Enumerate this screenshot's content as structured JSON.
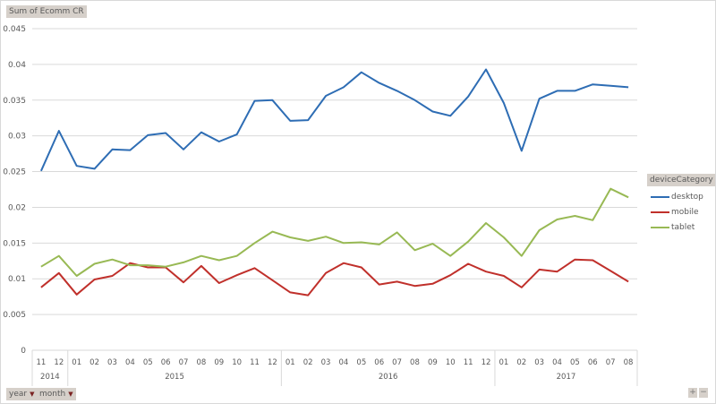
{
  "value_field": "Sum of Ecomm CR",
  "legend_field": "deviceCategory",
  "axis_fields": [
    "year",
    "month"
  ],
  "zoom_buttons": [
    "+",
    "−"
  ],
  "chart_data": {
    "type": "line",
    "title": "",
    "xlabel": "",
    "ylabel": "",
    "ylim": [
      0,
      0.045
    ],
    "yticks": [
      "0",
      "0.005",
      "0.01",
      "0.015",
      "0.02",
      "0.025",
      "0.03",
      "0.035",
      "0.04",
      "0.045"
    ],
    "grid": true,
    "legend_position": "right",
    "categories": [
      "11",
      "12",
      "01",
      "02",
      "03",
      "04",
      "05",
      "06",
      "07",
      "08",
      "09",
      "10",
      "11",
      "12",
      "01",
      "02",
      "03",
      "04",
      "05",
      "06",
      "07",
      "08",
      "09",
      "10",
      "11",
      "12",
      "01",
      "02",
      "03",
      "04",
      "05",
      "06",
      "07",
      "08"
    ],
    "year_groups": [
      {
        "label": "2014",
        "count": 2
      },
      {
        "label": "2015",
        "count": 12
      },
      {
        "label": "2016",
        "count": 12
      },
      {
        "label": "2017",
        "count": 8
      }
    ],
    "series": [
      {
        "name": "desktop",
        "color": "#2e6db4",
        "values": [
          0.0251,
          0.0307,
          0.0258,
          0.0254,
          0.0281,
          0.028,
          0.0301,
          0.0304,
          0.0281,
          0.0305,
          0.0292,
          0.0302,
          0.0349,
          0.035,
          0.0321,
          0.0322,
          0.0356,
          0.0368,
          0.0389,
          0.0374,
          0.0363,
          0.035,
          0.0334,
          0.0328,
          0.0355,
          0.0393,
          0.0346,
          0.0279,
          0.0352,
          0.0363,
          0.0363,
          0.0372,
          0.037,
          0.0368
        ]
      },
      {
        "name": "mobile",
        "color": "#c0302b",
        "values": [
          0.0088,
          0.0108,
          0.0078,
          0.0099,
          0.0104,
          0.0122,
          0.0116,
          0.0116,
          0.0095,
          0.0118,
          0.0094,
          0.0105,
          0.0115,
          0.0098,
          0.0081,
          0.0077,
          0.0108,
          0.0122,
          0.0116,
          0.0092,
          0.0096,
          0.009,
          0.0093,
          0.0105,
          0.0121,
          0.011,
          0.0104,
          0.0088,
          0.0113,
          0.011,
          0.0127,
          0.0126,
          0.0111,
          0.0096
        ]
      },
      {
        "name": "tablet",
        "color": "#98b954",
        "values": [
          0.0117,
          0.0132,
          0.0104,
          0.0121,
          0.0127,
          0.0119,
          0.0119,
          0.0117,
          0.0123,
          0.0132,
          0.0126,
          0.0132,
          0.015,
          0.0166,
          0.0158,
          0.0153,
          0.0159,
          0.015,
          0.0151,
          0.0148,
          0.0165,
          0.014,
          0.0149,
          0.0132,
          0.0152,
          0.0178,
          0.0158,
          0.0132,
          0.0168,
          0.0183,
          0.0188,
          0.0182,
          0.0226,
          0.0214
        ]
      }
    ]
  }
}
